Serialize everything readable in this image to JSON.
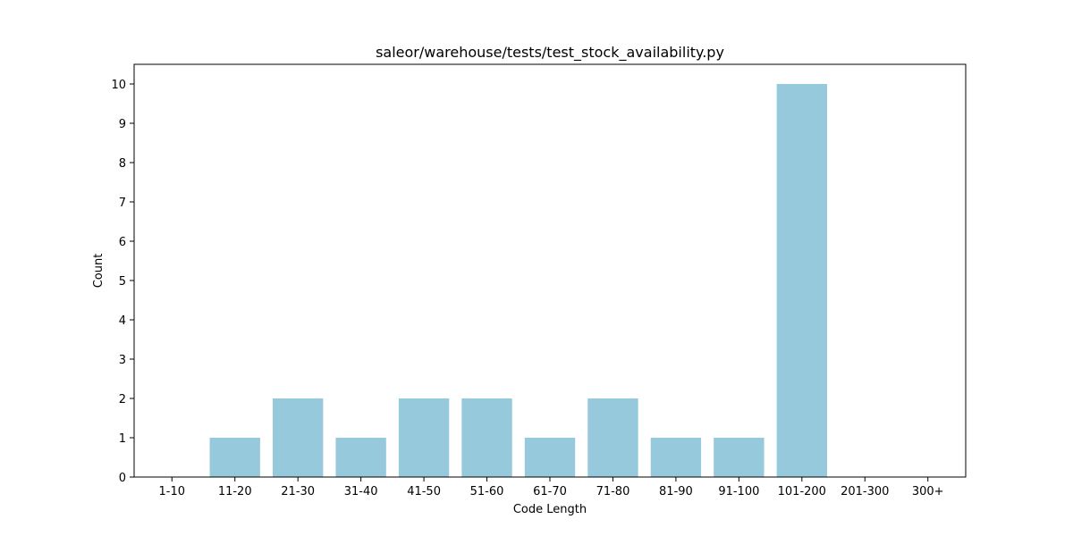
{
  "chart_data": {
    "type": "bar",
    "title": "saleor/warehouse/tests/test_stock_availability.py",
    "xlabel": "Code Length",
    "ylabel": "Count",
    "categories": [
      "1-10",
      "11-20",
      "21-30",
      "31-40",
      "41-50",
      "51-60",
      "61-70",
      "71-80",
      "81-90",
      "91-100",
      "101-200",
      "201-300",
      "300+"
    ],
    "values": [
      0,
      1,
      2,
      1,
      2,
      2,
      1,
      2,
      1,
      1,
      10,
      0,
      0
    ],
    "ylim": [
      0,
      10.5
    ],
    "yticks": [
      0,
      1,
      2,
      3,
      4,
      5,
      6,
      7,
      8,
      9,
      10
    ],
    "grid": false,
    "colors": {
      "bar": "#96c9dc",
      "axis": "#000000"
    }
  }
}
